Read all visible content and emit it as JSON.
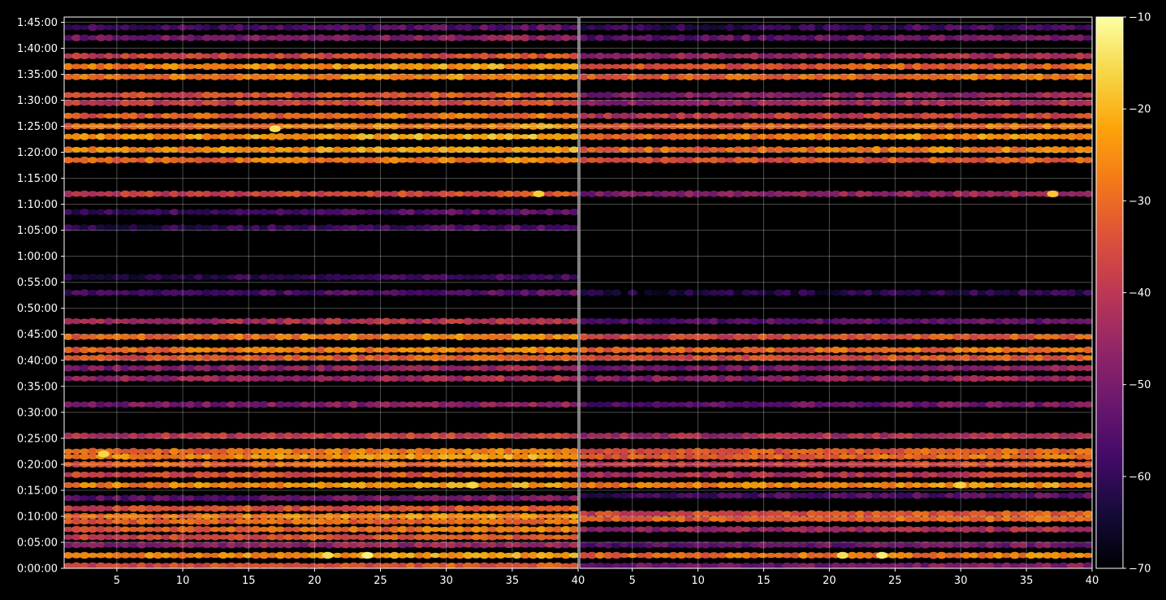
{
  "chart_data": [
    {
      "type": "heatmap",
      "title": "",
      "xlabel": "",
      "ylabel": "",
      "xlim": [
        1,
        40
      ],
      "x_ticks": [
        5,
        10,
        15,
        20,
        25,
        30,
        35,
        40
      ],
      "y_ticks": [
        "0:00:00",
        "0:05:00",
        "0:10:00",
        "0:15:00",
        "0:20:00",
        "0:25:00",
        "0:30:00",
        "0:35:00",
        "0:40:00",
        "0:45:00",
        "0:50:00",
        "0:55:00",
        "1:00:00",
        "1:05:00",
        "1:10:00",
        "1:15:00",
        "1:20:00",
        "1:25:00",
        "1:30:00",
        "1:35:00",
        "1:40:00",
        "1:45:00"
      ],
      "ylim_minutes": [
        0,
        106
      ],
      "grid": true,
      "colormap": "inferno",
      "bands": [
        {
          "t": 0.5,
          "level": -34
        },
        {
          "t": 2.5,
          "level": -24
        },
        {
          "t": 4.5,
          "level": -46
        },
        {
          "t": 6.0,
          "level": -34
        },
        {
          "t": 7.5,
          "level": -30
        },
        {
          "t": 9.0,
          "level": -30
        },
        {
          "t": 10.0,
          "level": -26
        },
        {
          "t": 11.5,
          "level": -34
        },
        {
          "t": 13.5,
          "level": -52
        },
        {
          "t": 16.0,
          "level": -24
        },
        {
          "t": 18.0,
          "level": -34
        },
        {
          "t": 20.0,
          "level": -30
        },
        {
          "t": 21.5,
          "level": -24
        },
        {
          "t": 22.5,
          "level": -28
        },
        {
          "t": 25.5,
          "level": -38
        },
        {
          "t": 31.5,
          "level": -48
        },
        {
          "t": 36.5,
          "level": -44
        },
        {
          "t": 38.5,
          "level": -46
        },
        {
          "t": 40.5,
          "level": -32
        },
        {
          "t": 42.0,
          "level": -28
        },
        {
          "t": 44.5,
          "level": -28
        },
        {
          "t": 47.5,
          "level": -42
        },
        {
          "t": 53.0,
          "level": -56
        },
        {
          "t": 56.0,
          "level": -60
        },
        {
          "t": 65.5,
          "level": -58
        },
        {
          "t": 68.5,
          "level": -56
        },
        {
          "t": 72.0,
          "level": -36
        },
        {
          "t": 78.5,
          "level": -28
        },
        {
          "t": 80.5,
          "level": -24
        },
        {
          "t": 83.0,
          "level": -22
        },
        {
          "t": 85.0,
          "level": -26
        },
        {
          "t": 87.0,
          "level": -30
        },
        {
          "t": 89.5,
          "level": -36
        },
        {
          "t": 91.0,
          "level": -34
        },
        {
          "t": 94.5,
          "level": -26
        },
        {
          "t": 96.5,
          "level": -24
        },
        {
          "t": 98.5,
          "level": -36
        },
        {
          "t": 102.0,
          "level": -48
        },
        {
          "t": 104.0,
          "level": -56
        }
      ],
      "hot_spots": [
        {
          "x": 24,
          "t": 2.5,
          "level": -12
        },
        {
          "x": 21,
          "t": 2.5,
          "level": -15
        },
        {
          "x": 17,
          "t": 84.5,
          "level": -15
        },
        {
          "x": 37,
          "t": 72.0,
          "level": -17
        },
        {
          "x": 4,
          "t": 22.0,
          "level": -16
        },
        {
          "x": 32,
          "t": 16.0,
          "level": -16
        }
      ]
    },
    {
      "type": "heatmap",
      "title": "",
      "xlabel": "",
      "ylabel": "",
      "xlim": [
        1,
        40
      ],
      "x_ticks": [
        5,
        10,
        15,
        20,
        25,
        30,
        35,
        40
      ],
      "grid": true,
      "colormap": "inferno",
      "bands": [
        {
          "t": 0.5,
          "level": -50
        },
        {
          "t": 2.5,
          "level": -28
        },
        {
          "t": 4.5,
          "level": -52
        },
        {
          "t": 7.5,
          "level": -44
        },
        {
          "t": 9.5,
          "level": -30
        },
        {
          "t": 10.5,
          "level": -34
        },
        {
          "t": 14.0,
          "level": -56
        },
        {
          "t": 16.0,
          "level": -26
        },
        {
          "t": 18.0,
          "level": -40
        },
        {
          "t": 20.0,
          "level": -36
        },
        {
          "t": 21.5,
          "level": -30
        },
        {
          "t": 22.5,
          "level": -32
        },
        {
          "t": 25.5,
          "level": -42
        },
        {
          "t": 31.5,
          "level": -52
        },
        {
          "t": 36.5,
          "level": -46
        },
        {
          "t": 38.5,
          "level": -48
        },
        {
          "t": 40.5,
          "level": -34
        },
        {
          "t": 42.0,
          "level": -30
        },
        {
          "t": 44.5,
          "level": -34
        },
        {
          "t": 47.5,
          "level": -54
        },
        {
          "t": 53.0,
          "level": -62
        },
        {
          "t": 72.0,
          "level": -46
        },
        {
          "t": 78.5,
          "level": -34
        },
        {
          "t": 80.5,
          "level": -28
        },
        {
          "t": 83.0,
          "level": -26
        },
        {
          "t": 85.0,
          "level": -30
        },
        {
          "t": 87.0,
          "level": -38
        },
        {
          "t": 89.5,
          "level": -44
        },
        {
          "t": 91.0,
          "level": -46
        },
        {
          "t": 94.5,
          "level": -30
        },
        {
          "t": 96.5,
          "level": -32
        },
        {
          "t": 98.5,
          "level": -44
        },
        {
          "t": 102.0,
          "level": -52
        },
        {
          "t": 104.0,
          "level": -58
        }
      ],
      "hot_spots": [
        {
          "x": 24,
          "t": 2.5,
          "level": -13
        },
        {
          "x": 21,
          "t": 2.5,
          "level": -15
        },
        {
          "x": 37,
          "t": 72.0,
          "level": -18
        },
        {
          "x": 30,
          "t": 16.0,
          "level": -17
        }
      ]
    }
  ],
  "colorbar": {
    "vmin": -70,
    "vmax": -10,
    "ticks": [
      "−10",
      "−20",
      "−30",
      "−40",
      "−50",
      "−60",
      "−70"
    ]
  },
  "colors": {
    "background": "#000000",
    "grid": "#ffffff",
    "tick": "#ffffff"
  }
}
